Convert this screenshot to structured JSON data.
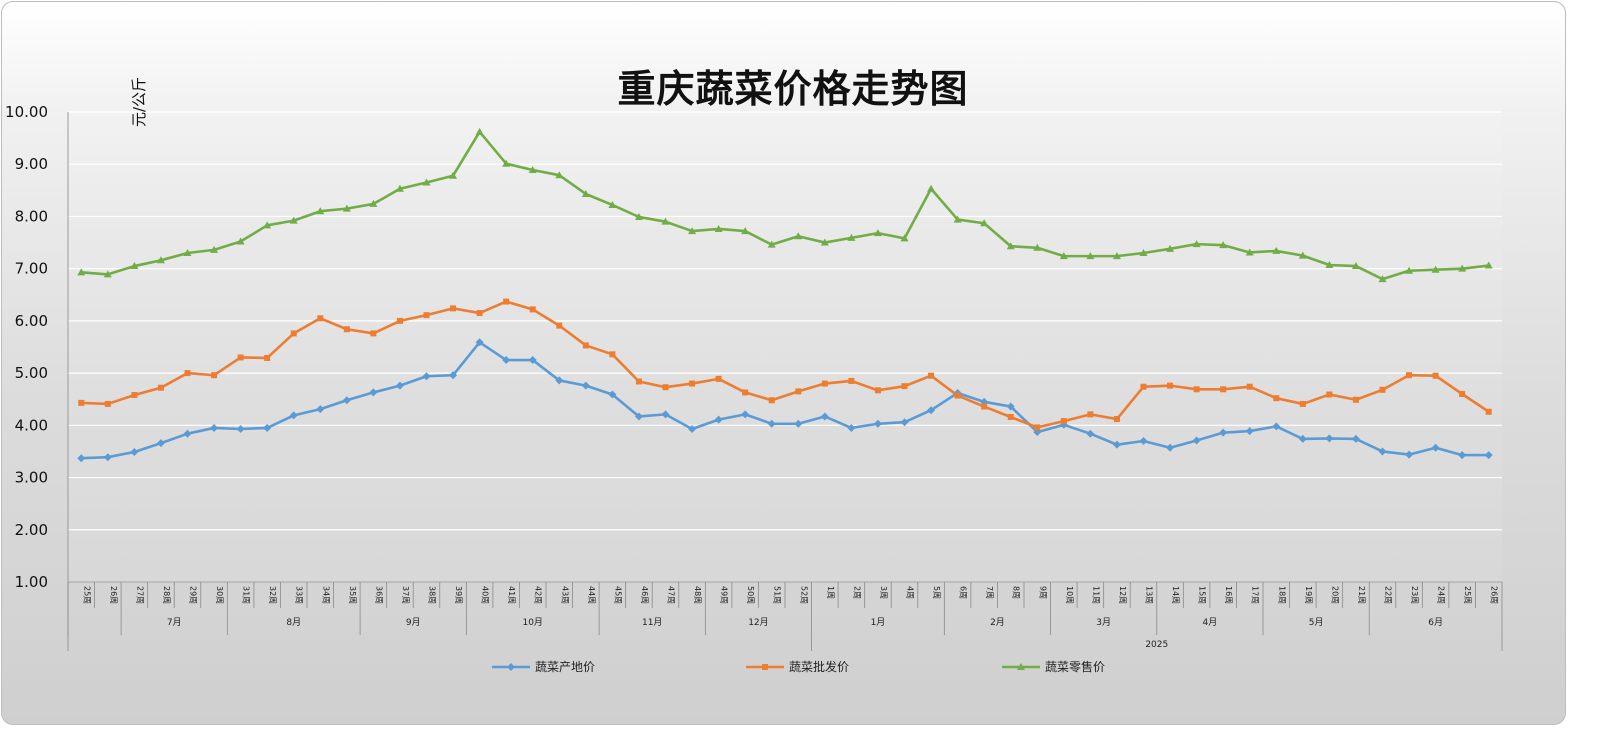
{
  "chart_data": {
    "type": "line",
    "title": "重庆蔬菜价格走势图",
    "ylabel": "元/公斤",
    "ylim": [
      1,
      10
    ],
    "yticks": [
      "1.00",
      "2.00",
      "3.00",
      "4.00",
      "5.00",
      "6.00",
      "7.00",
      "8.00",
      "9.00",
      "10.00"
    ],
    "grid": true,
    "legend_position": "bottom",
    "categories": [
      "25周",
      "26周",
      "27周",
      "28周",
      "29周",
      "30周",
      "31周",
      "32周",
      "33周",
      "34周",
      "35周",
      "36周",
      "37周",
      "38周",
      "39周",
      "40周",
      "41周",
      "42周",
      "43周",
      "44周",
      "45周",
      "46周",
      "47周",
      "48周",
      "49周",
      "50周",
      "51周",
      "52周",
      "1周",
      "2周",
      "3周",
      "4周",
      "5周",
      "6周",
      "7周",
      "8周",
      "9周",
      "10周",
      "11周",
      "12周",
      "13周",
      "14周",
      "15周",
      "16周",
      "17周",
      "18周",
      "19周",
      "20周",
      "21周",
      "22周",
      "23周",
      "24周",
      "25周",
      "26周"
    ],
    "month_groups": [
      {
        "label": "",
        "start": 0,
        "end": 1
      },
      {
        "label": "7月",
        "start": 2,
        "end": 5
      },
      {
        "label": "8月",
        "start": 6,
        "end": 10
      },
      {
        "label": "9月",
        "start": 11,
        "end": 14
      },
      {
        "label": "10月",
        "start": 15,
        "end": 19
      },
      {
        "label": "11月",
        "start": 20,
        "end": 23
      },
      {
        "label": "12月",
        "start": 24,
        "end": 27
      },
      {
        "label": "1月",
        "start": 28,
        "end": 32
      },
      {
        "label": "2月",
        "start": 33,
        "end": 36
      },
      {
        "label": "3月",
        "start": 37,
        "end": 40
      },
      {
        "label": "4月",
        "start": 41,
        "end": 44
      },
      {
        "label": "5月",
        "start": 45,
        "end": 48
      },
      {
        "label": "6月",
        "start": 49,
        "end": 53
      }
    ],
    "year_groups": [
      {
        "label": "",
        "start": 0,
        "end": 27
      },
      {
        "label": "2025",
        "start": 28,
        "end": 53
      }
    ],
    "series": [
      {
        "name": "蔬菜产地价",
        "color": "#5b9bd5",
        "marker": "diamond",
        "values": [
          3.37,
          3.39,
          3.49,
          3.66,
          3.84,
          3.95,
          3.93,
          3.95,
          4.19,
          4.31,
          4.48,
          4.63,
          4.76,
          4.94,
          4.96,
          5.59,
          5.25,
          5.25,
          4.86,
          4.76,
          4.59,
          4.17,
          4.21,
          3.93,
          4.11,
          4.21,
          4.03,
          4.03,
          4.17,
          3.95,
          4.03,
          4.06,
          4.29,
          4.62,
          4.45,
          4.36,
          3.87,
          4.01,
          3.84,
          3.63,
          3.7,
          3.57,
          3.71,
          3.86,
          3.89,
          3.98,
          3.74,
          3.75,
          3.74,
          3.5,
          3.44,
          3.57,
          3.43,
          3.43
        ]
      },
      {
        "name": "蔬菜批发价",
        "color": "#ed7d31",
        "marker": "square",
        "values": [
          4.43,
          4.41,
          4.58,
          4.72,
          5.0,
          4.96,
          5.3,
          5.29,
          5.76,
          6.05,
          5.84,
          5.76,
          6.0,
          6.11,
          6.24,
          6.15,
          6.37,
          6.22,
          5.91,
          5.53,
          5.36,
          4.84,
          4.73,
          4.8,
          4.89,
          4.63,
          4.48,
          4.65,
          4.8,
          4.85,
          4.67,
          4.75,
          4.95,
          4.57,
          4.36,
          4.16,
          3.96,
          4.08,
          4.21,
          4.12,
          4.74,
          4.76,
          4.69,
          4.69,
          4.74,
          4.52,
          4.41,
          4.59,
          4.49,
          4.68,
          4.96,
          4.95,
          4.6,
          4.26
        ]
      },
      {
        "name": "蔬菜零售价",
        "color": "#70ad47",
        "marker": "triangle",
        "values": [
          6.93,
          6.89,
          7.05,
          7.16,
          7.3,
          7.36,
          7.52,
          7.83,
          7.92,
          8.1,
          8.15,
          8.24,
          8.53,
          8.65,
          8.78,
          9.62,
          9.01,
          8.89,
          8.79,
          8.43,
          8.22,
          7.99,
          7.9,
          7.72,
          7.76,
          7.72,
          7.46,
          7.62,
          7.5,
          7.59,
          7.68,
          7.58,
          8.53,
          7.94,
          7.87,
          7.43,
          7.4,
          7.24,
          7.24,
          7.24,
          7.3,
          7.38,
          7.47,
          7.45,
          7.31,
          7.34,
          7.25,
          7.07,
          7.05,
          6.8,
          6.96,
          6.98,
          7.0,
          7.06
        ]
      }
    ]
  }
}
